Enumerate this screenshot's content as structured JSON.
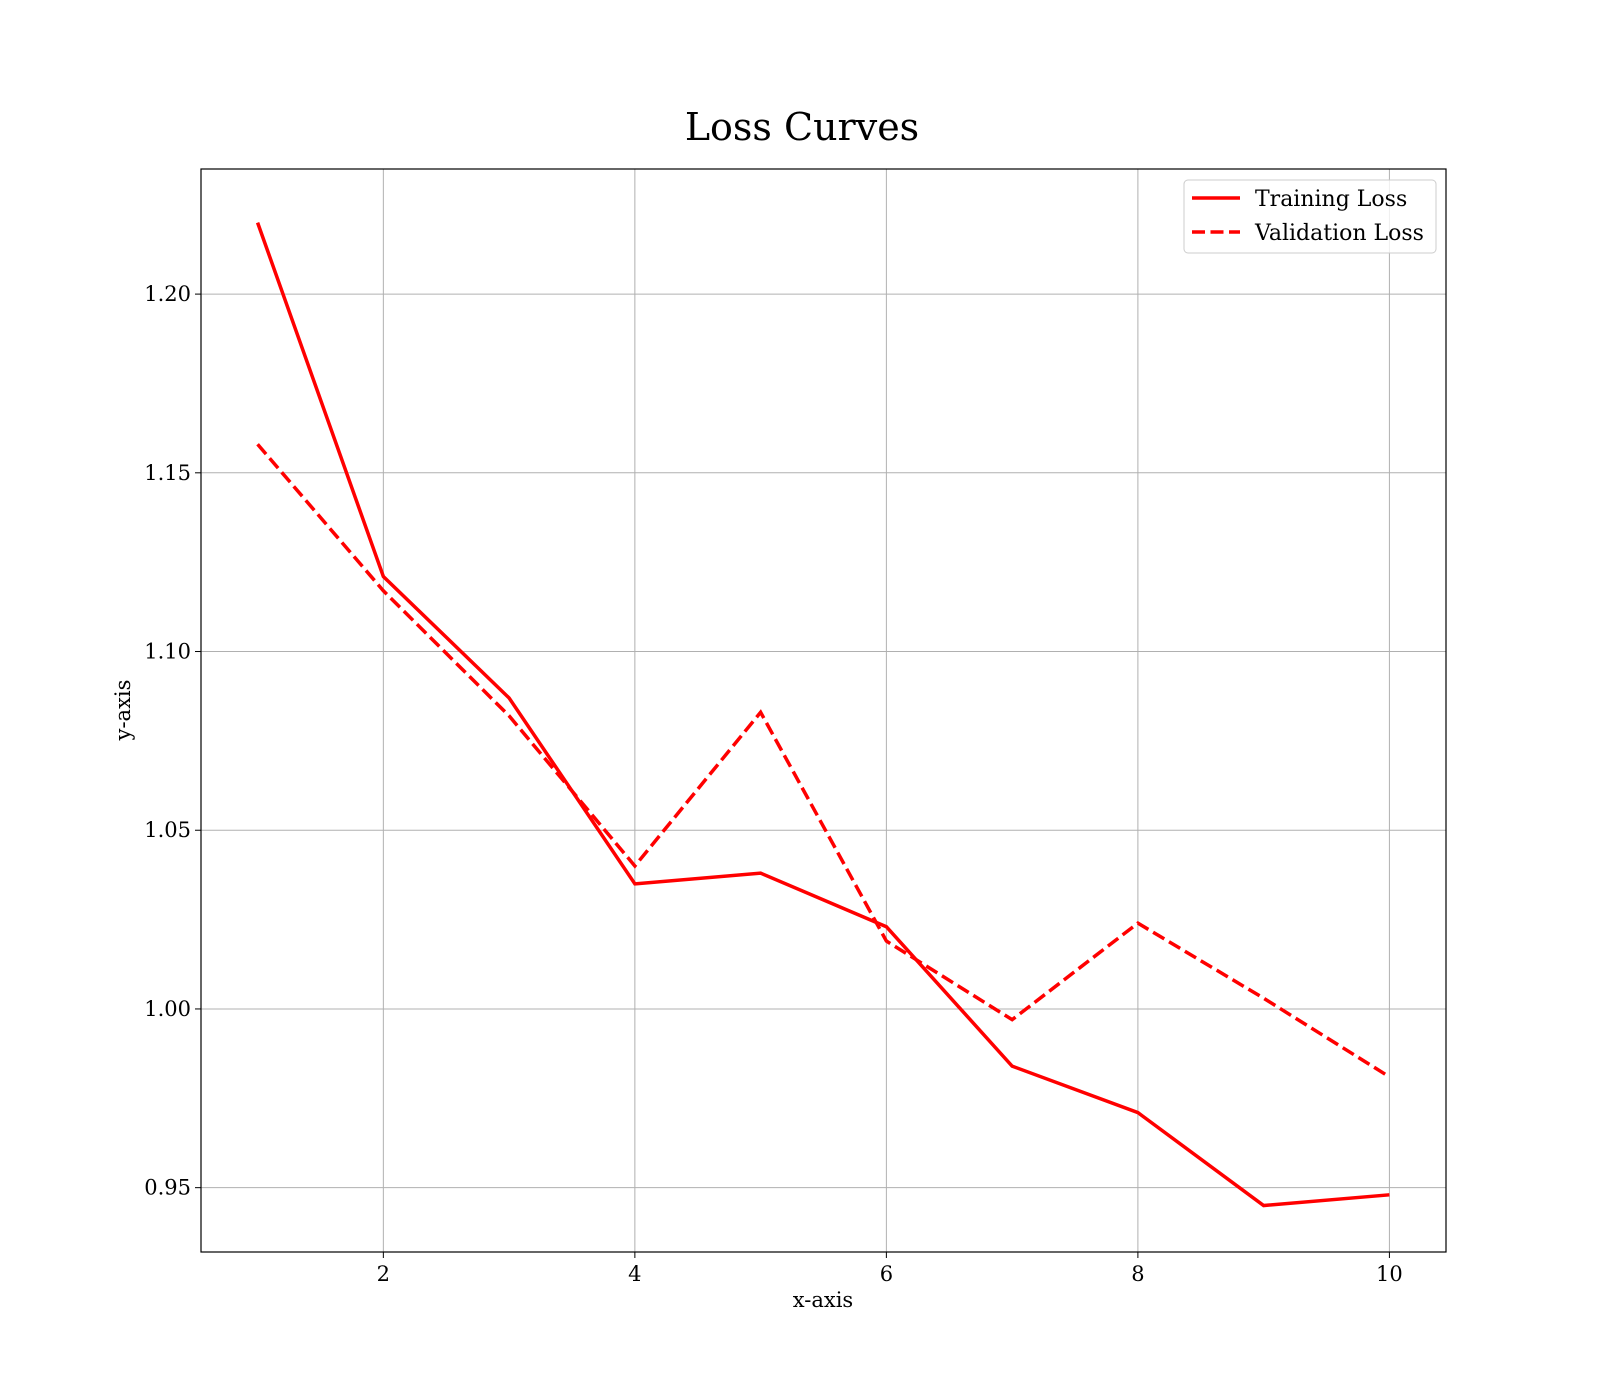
{
  "chart_data": {
    "type": "line",
    "title": "Loss Curves",
    "xlabel": "x-axis",
    "ylabel": "y-axis",
    "x": [
      1,
      2,
      3,
      4,
      5,
      6,
      7,
      8,
      9,
      10
    ],
    "series": [
      {
        "name": "Training Loss",
        "values": [
          1.22,
          1.121,
          1.087,
          1.035,
          1.038,
          1.023,
          0.984,
          0.971,
          0.945,
          0.948
        ],
        "color": "#ff0000",
        "style": "solid"
      },
      {
        "name": "Validation Loss",
        "values": [
          1.158,
          1.117,
          1.082,
          1.04,
          1.083,
          1.019,
          0.997,
          1.024,
          1.003,
          0.981
        ],
        "color": "#ff0000",
        "style": "dashed"
      }
    ],
    "xlim": [
      0.55,
      10.45
    ],
    "ylim": [
      0.932,
      1.235
    ],
    "xticks": [
      2,
      4,
      6,
      8,
      10
    ],
    "xtick_labels": [
      "2",
      "4",
      "6",
      "8",
      "10"
    ],
    "yticks": [
      0.95,
      1.0,
      1.05,
      1.1,
      1.15,
      1.2
    ],
    "ytick_labels": [
      "0.95",
      "1.00",
      "1.05",
      "1.10",
      "1.15",
      "1.20"
    ],
    "grid": true,
    "legend_position": "top-right"
  }
}
